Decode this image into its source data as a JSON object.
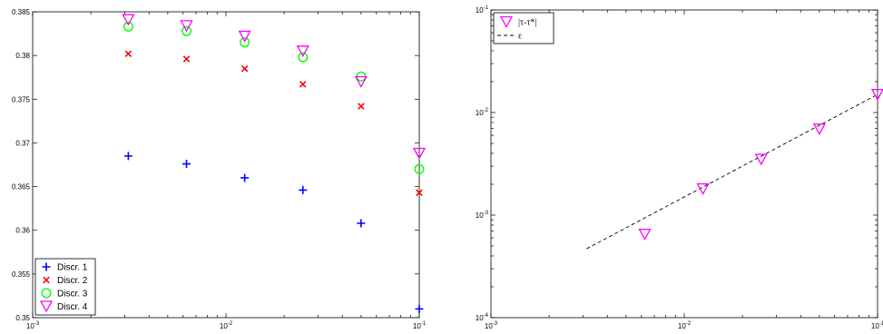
{
  "chart_data": [
    {
      "type": "scatter",
      "title": "",
      "xlabel": "",
      "ylabel": "",
      "x_scale": "log",
      "xlim": [
        0.001,
        0.1
      ],
      "ylim": [
        0.35,
        0.385
      ],
      "grid": false,
      "legend_position": "bottom-left",
      "x_tick_labels": [
        {
          "base": "10",
          "exp": "-3"
        },
        {
          "base": "10",
          "exp": "-2"
        },
        {
          "base": "10",
          "exp": "-1"
        }
      ],
      "y_ticks": [
        0.35,
        0.355,
        0.36,
        0.365,
        0.37,
        0.375,
        0.38,
        0.385
      ],
      "y_tick_labels": [
        "0.35",
        "0.355",
        "0.36",
        "0.365",
        "0.37",
        "0.375",
        "0.38",
        "0.385"
      ],
      "x": [
        0.003125,
        0.00625,
        0.0125,
        0.025,
        0.05,
        0.1
      ],
      "series": [
        {
          "name": "Discr. 1",
          "marker": "plus",
          "color": "#0000ff",
          "values": [
            0.3685,
            0.3676,
            0.366,
            0.3646,
            0.3608,
            0.351
          ]
        },
        {
          "name": "Discr. 2",
          "marker": "x",
          "color": "#ff0000",
          "values": [
            0.3802,
            0.3796,
            0.3785,
            0.3767,
            0.3742,
            0.3643
          ]
        },
        {
          "name": "Discr. 3",
          "marker": "circle",
          "color": "#00ff00",
          "values": [
            0.3833,
            0.3828,
            0.3815,
            0.3798,
            0.3776,
            0.367
          ]
        },
        {
          "name": "Discr. 4",
          "marker": "triangle-down",
          "color": "#ff00ff",
          "values": [
            0.3841,
            0.3834,
            0.3822,
            0.3805,
            0.377,
            0.3688
          ]
        }
      ]
    },
    {
      "type": "line",
      "title": "",
      "xlabel": "",
      "ylabel": "",
      "x_scale": "log",
      "y_scale": "log",
      "xlim": [
        0.001,
        0.1
      ],
      "ylim": [
        0.0001,
        0.1
      ],
      "grid": false,
      "legend_position": "top-left",
      "x_tick_labels": [
        {
          "base": "10",
          "exp": "-3"
        },
        {
          "base": "10",
          "exp": "-2"
        },
        {
          "base": "10",
          "exp": "-1"
        }
      ],
      "y_tick_labels": [
        {
          "base": "10",
          "exp": "-4"
        },
        {
          "base": "10",
          "exp": "-3"
        },
        {
          "base": "10",
          "exp": "-2"
        },
        {
          "base": "10",
          "exp": "-1"
        }
      ],
      "series": [
        {
          "name": "|τ-τ*|",
          "marker": "triangle-down",
          "color": "#ff00ff",
          "line": "none",
          "x": [
            0.00625,
            0.0125,
            0.025,
            0.05,
            0.1
          ],
          "values": [
            0.00065,
            0.0018,
            0.0035,
            0.0069,
            0.015
          ]
        },
        {
          "name": "ε",
          "marker": "none",
          "color": "#000000",
          "line": "dashed",
          "x": [
            0.003125,
            0.1
          ],
          "values": [
            0.00047,
            0.015
          ]
        }
      ]
    }
  ]
}
